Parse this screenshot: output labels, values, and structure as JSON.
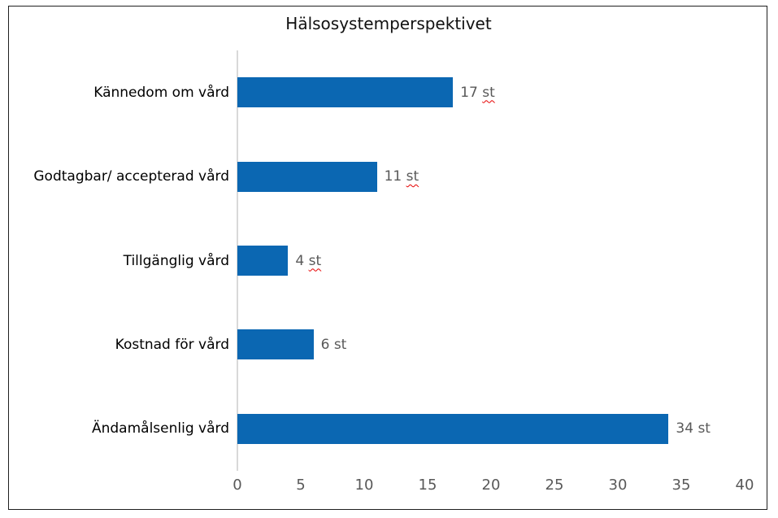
{
  "window": {
    "background_color": "#ffffff",
    "border_color": "#1f1f1f"
  },
  "chart_data": {
    "type": "bar",
    "orientation": "horizontal",
    "title": "Hälsosystemperspektivet",
    "categories": [
      "Kännedom om vård",
      "Godtagbar/ accepterad vård",
      "Tillgänglig vård",
      "Kostnad för vård",
      "Ändamålsenlig vård"
    ],
    "values": [
      17,
      11,
      4,
      6,
      34
    ],
    "unit": "st",
    "data_labels": [
      "17 st",
      "11 st",
      "4 st",
      "6 st",
      "34 st"
    ],
    "spellcheck_squiggle_on_unit": [
      true,
      true,
      true,
      false,
      false
    ],
    "xlabel": "",
    "ylabel": "",
    "xlim": [
      0,
      40
    ],
    "xticks": [
      0,
      5,
      10,
      15,
      20,
      25,
      30,
      35,
      40
    ],
    "grid": false,
    "legend": "none",
    "bar_color": "#0b67b2",
    "axis_line_color": "#d9d9d9",
    "tick_label_color": "#595959",
    "data_label_color": "#595959",
    "category_label_color": "#000000",
    "title_color": "#111111",
    "squiggle_color": "#e60000"
  }
}
